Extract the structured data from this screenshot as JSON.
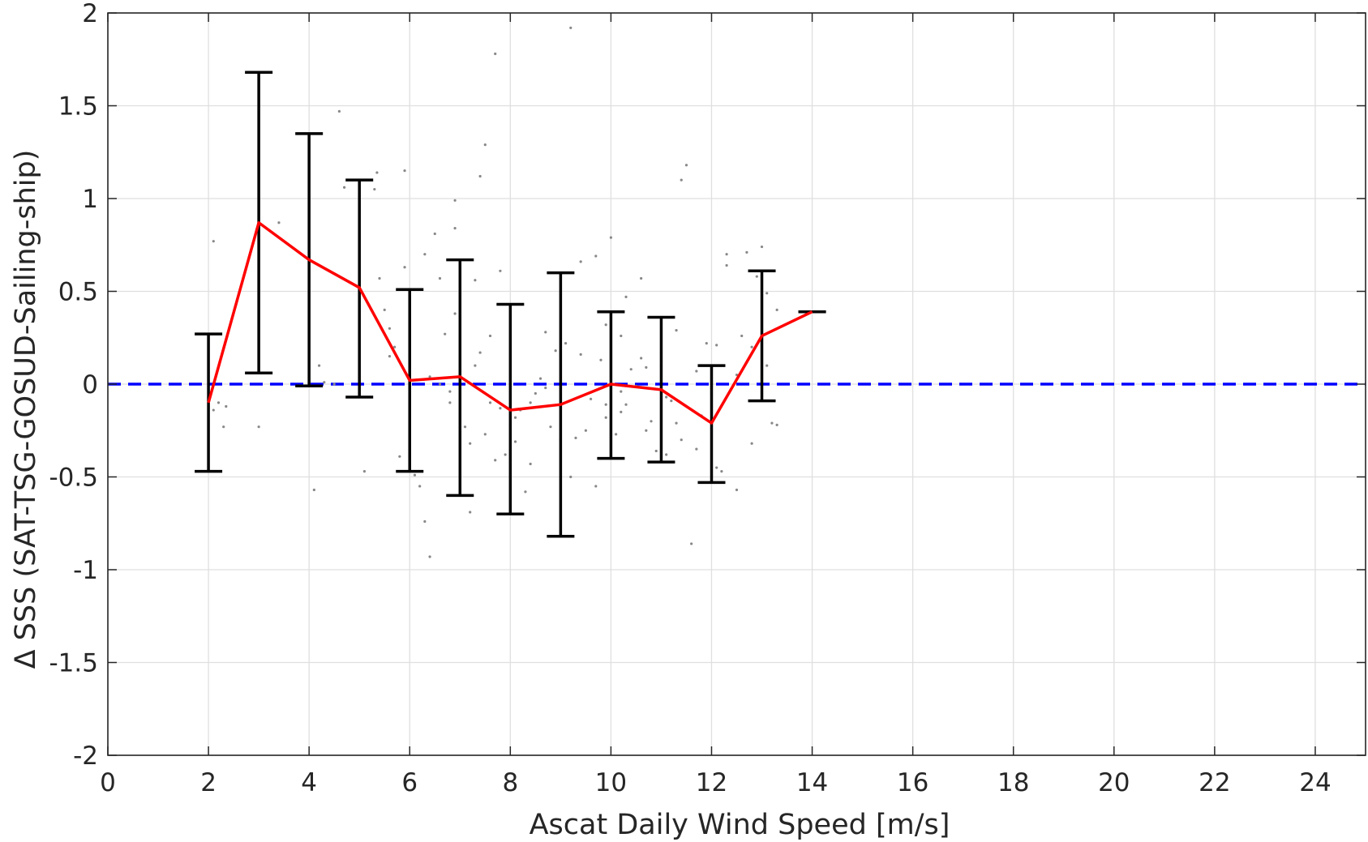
{
  "chart_data": {
    "type": "scatter",
    "title": "",
    "xlabel": "Ascat Daily Wind Speed [m/s]",
    "ylabel": "Δ SSS (SAT-TSG-GOSUD-Sailing-ship)",
    "xlim": [
      0,
      25
    ],
    "ylim": [
      -2,
      2
    ],
    "xticks": [
      0,
      2,
      4,
      6,
      8,
      10,
      12,
      14,
      16,
      18,
      20,
      22,
      24
    ],
    "yticks": [
      -2,
      -1.5,
      -1,
      -0.5,
      0,
      0.5,
      1,
      1.5,
      2
    ],
    "grid": true,
    "legend": "none",
    "series": [
      {
        "kind": "errorbar",
        "color": "#000000",
        "x": [
          2,
          3,
          4,
          5,
          6,
          7,
          8,
          9,
          10,
          11,
          12,
          13,
          14
        ],
        "upper": [
          0.27,
          1.68,
          1.35,
          1.1,
          0.51,
          0.67,
          0.43,
          0.6,
          0.39,
          0.36,
          0.1,
          0.61,
          0.39
        ],
        "lower": [
          -0.47,
          0.06,
          -0.01,
          -0.07,
          -0.47,
          -0.6,
          -0.7,
          -0.82,
          -0.4,
          -0.42,
          -0.53,
          -0.09,
          0.39
        ]
      },
      {
        "kind": "line",
        "color": "#ff0000",
        "x": [
          2,
          3,
          4,
          5,
          6,
          7,
          8,
          9,
          10,
          11,
          12,
          13,
          14
        ],
        "y": [
          -0.1,
          0.87,
          0.67,
          0.52,
          0.02,
          0.04,
          -0.14,
          -0.11,
          0.0,
          -0.03,
          -0.21,
          0.26,
          0.39
        ]
      },
      {
        "kind": "reference_line",
        "color": "#0000ff",
        "style": "dashed",
        "y": 0
      },
      {
        "kind": "scatter",
        "color": "#888888",
        "points": [
          [
            2.1,
            0.77
          ],
          [
            2.2,
            -0.1
          ],
          [
            2.3,
            -0.23
          ],
          [
            2.1,
            -0.14
          ],
          [
            2.35,
            -0.12
          ],
          [
            3.0,
            -0.23
          ],
          [
            3.4,
            0.87
          ],
          [
            4.1,
            -0.57
          ],
          [
            4.2,
            0.1
          ],
          [
            4.3,
            0.01
          ],
          [
            4.5,
            0.0
          ],
          [
            4.7,
            1.06
          ],
          [
            4.6,
            1.47
          ],
          [
            5.0,
            0.93
          ],
          [
            5.1,
            -0.47
          ],
          [
            5.3,
            1.05
          ],
          [
            5.35,
            1.14
          ],
          [
            5.5,
            0.4
          ],
          [
            5.4,
            0.57
          ],
          [
            5.6,
            0.15
          ],
          [
            5.7,
            0.2
          ],
          [
            5.8,
            -0.39
          ],
          [
            5.9,
            0.63
          ],
          [
            5.9,
            1.15
          ],
          [
            6.0,
            0.22
          ],
          [
            6.2,
            -0.55
          ],
          [
            6.3,
            -0.74
          ],
          [
            6.3,
            0.7
          ],
          [
            6.4,
            -0.93
          ],
          [
            6.4,
            0.04
          ],
          [
            6.5,
            0.81
          ],
          [
            6.6,
            0.57
          ],
          [
            6.7,
            0.27
          ],
          [
            6.8,
            -0.04
          ],
          [
            6.8,
            -0.1
          ],
          [
            6.9,
            0.99
          ],
          [
            6.9,
            0.38
          ],
          [
            6.9,
            0.84
          ],
          [
            7.0,
            -0.3
          ],
          [
            7.1,
            -0.23
          ],
          [
            7.2,
            -0.69
          ],
          [
            7.2,
            -0.32
          ],
          [
            7.3,
            0.56
          ],
          [
            7.3,
            0.1
          ],
          [
            7.4,
            0.17
          ],
          [
            7.4,
            1.12
          ],
          [
            7.5,
            1.29
          ],
          [
            7.5,
            -0.27
          ],
          [
            7.6,
            0.26
          ],
          [
            7.6,
            -0.1
          ],
          [
            7.7,
            -0.41
          ],
          [
            7.7,
            1.78
          ],
          [
            7.8,
            0.61
          ],
          [
            7.9,
            -0.38
          ],
          [
            8.0,
            -0.22
          ],
          [
            8.1,
            -0.31
          ],
          [
            8.1,
            -0.18
          ],
          [
            8.2,
            -0.14
          ],
          [
            8.3,
            -0.58
          ],
          [
            8.4,
            -0.1
          ],
          [
            8.5,
            -0.05
          ],
          [
            8.6,
            0.03
          ],
          [
            8.7,
            0.28
          ],
          [
            8.8,
            -0.23
          ],
          [
            8.9,
            0.18
          ],
          [
            9.0,
            -0.3
          ],
          [
            9.1,
            0.22
          ],
          [
            9.2,
            -0.5
          ],
          [
            9.2,
            1.92
          ],
          [
            9.3,
            -0.29
          ],
          [
            9.4,
            0.16
          ],
          [
            9.4,
            0.66
          ],
          [
            9.5,
            -0.25
          ],
          [
            9.6,
            -0.08
          ],
          [
            9.7,
            -0.55
          ],
          [
            9.7,
            0.69
          ],
          [
            9.8,
            -0.4
          ],
          [
            9.8,
            0.13
          ],
          [
            9.9,
            -0.11
          ],
          [
            9.9,
            0.32
          ],
          [
            10.0,
            0.79
          ],
          [
            10.1,
            -0.27
          ],
          [
            10.2,
            -0.15
          ],
          [
            10.2,
            0.26
          ],
          [
            10.3,
            -0.11
          ],
          [
            10.4,
            0.08
          ],
          [
            10.5,
            -0.01
          ],
          [
            10.6,
            0.57
          ],
          [
            10.7,
            -0.25
          ],
          [
            10.7,
            0.09
          ],
          [
            10.8,
            -0.2
          ],
          [
            10.9,
            -0.36
          ],
          [
            11.0,
            0.1
          ],
          [
            11.0,
            0.17
          ],
          [
            11.1,
            -0.38
          ],
          [
            11.2,
            -0.09
          ],
          [
            11.3,
            -0.21
          ],
          [
            11.3,
            0.29
          ],
          [
            11.4,
            1.1
          ],
          [
            11.5,
            1.18
          ],
          [
            11.6,
            -0.86
          ],
          [
            11.7,
            0.07
          ],
          [
            11.7,
            -0.35
          ],
          [
            11.8,
            -0.17
          ],
          [
            11.9,
            0.22
          ],
          [
            12.0,
            -0.05
          ],
          [
            12.1,
            -0.45
          ],
          [
            12.1,
            0.21
          ],
          [
            12.2,
            -0.47
          ],
          [
            12.3,
            0.7
          ],
          [
            12.3,
            0.64
          ],
          [
            12.5,
            -0.57
          ],
          [
            12.5,
            0.05
          ],
          [
            12.7,
            0.71
          ],
          [
            12.8,
            0.2
          ],
          [
            12.9,
            0.58
          ],
          [
            13.0,
            0.74
          ],
          [
            13.1,
            0.49
          ],
          [
            13.2,
            -0.21
          ],
          [
            13.3,
            -0.22
          ],
          [
            13.3,
            0.4
          ],
          [
            13.1,
            0.1
          ],
          [
            12.8,
            -0.32
          ],
          [
            8.7,
            -0.02
          ],
          [
            9.9,
            -0.18
          ],
          [
            10.3,
            0.47
          ],
          [
            6.6,
            0.0
          ],
          [
            11.1,
            -0.07
          ],
          [
            10.6,
            0.14
          ],
          [
            8.4,
            -0.43
          ],
          [
            7.8,
            -0.13
          ],
          [
            12.6,
            0.26
          ],
          [
            9.0,
            -0.12
          ],
          [
            10.2,
            -0.04
          ],
          [
            12.0,
            0.01
          ],
          [
            11.4,
            -0.3
          ],
          [
            6.1,
            -0.49
          ],
          [
            5.6,
            0.3
          ]
        ]
      }
    ]
  }
}
